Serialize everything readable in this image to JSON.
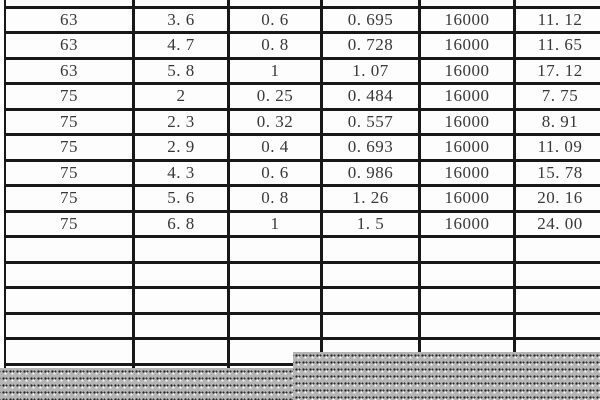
{
  "table": {
    "column_count": 6,
    "rows": [
      {
        "cells": [
          "63",
          "3. 6",
          "0. 6",
          "0. 695",
          "16000",
          "11. 12"
        ]
      },
      {
        "cells": [
          "63",
          "4. 7",
          "0. 8",
          "0. 728",
          "16000",
          "11. 65"
        ]
      },
      {
        "cells": [
          "63",
          "5. 8",
          "1",
          "1. 07",
          "16000",
          "17. 12"
        ]
      },
      {
        "cells": [
          "75",
          "2",
          "0. 25",
          "0. 484",
          "16000",
          "7. 75"
        ]
      },
      {
        "cells": [
          "75",
          "2. 3",
          "0. 32",
          "0. 557",
          "16000",
          "8. 91"
        ]
      },
      {
        "cells": [
          "75",
          "2. 9",
          "0. 4",
          "0. 693",
          "16000",
          "11. 09"
        ]
      },
      {
        "cells": [
          "75",
          "4. 3",
          "0. 6",
          "0. 986",
          "16000",
          "15. 78"
        ]
      },
      {
        "cells": [
          "75",
          "5. 6",
          "0. 8",
          "1. 26",
          "16000",
          "20. 16"
        ]
      },
      {
        "cells": [
          "75",
          "6. 8",
          "1",
          "1. 5",
          "16000",
          "24. 00"
        ]
      }
    ],
    "empty_row_count": 5
  },
  "overlay": {
    "description": "gray dithered band obscuring bottom of table",
    "base_color": "#b5b5b5",
    "dark_dot_color": "#262626",
    "light_dot_color": "#f2f2f2"
  },
  "colors": {
    "border": "#181818",
    "cell_background": "#fdfdfd",
    "text": "#383838",
    "page_background": "#ffffff"
  }
}
